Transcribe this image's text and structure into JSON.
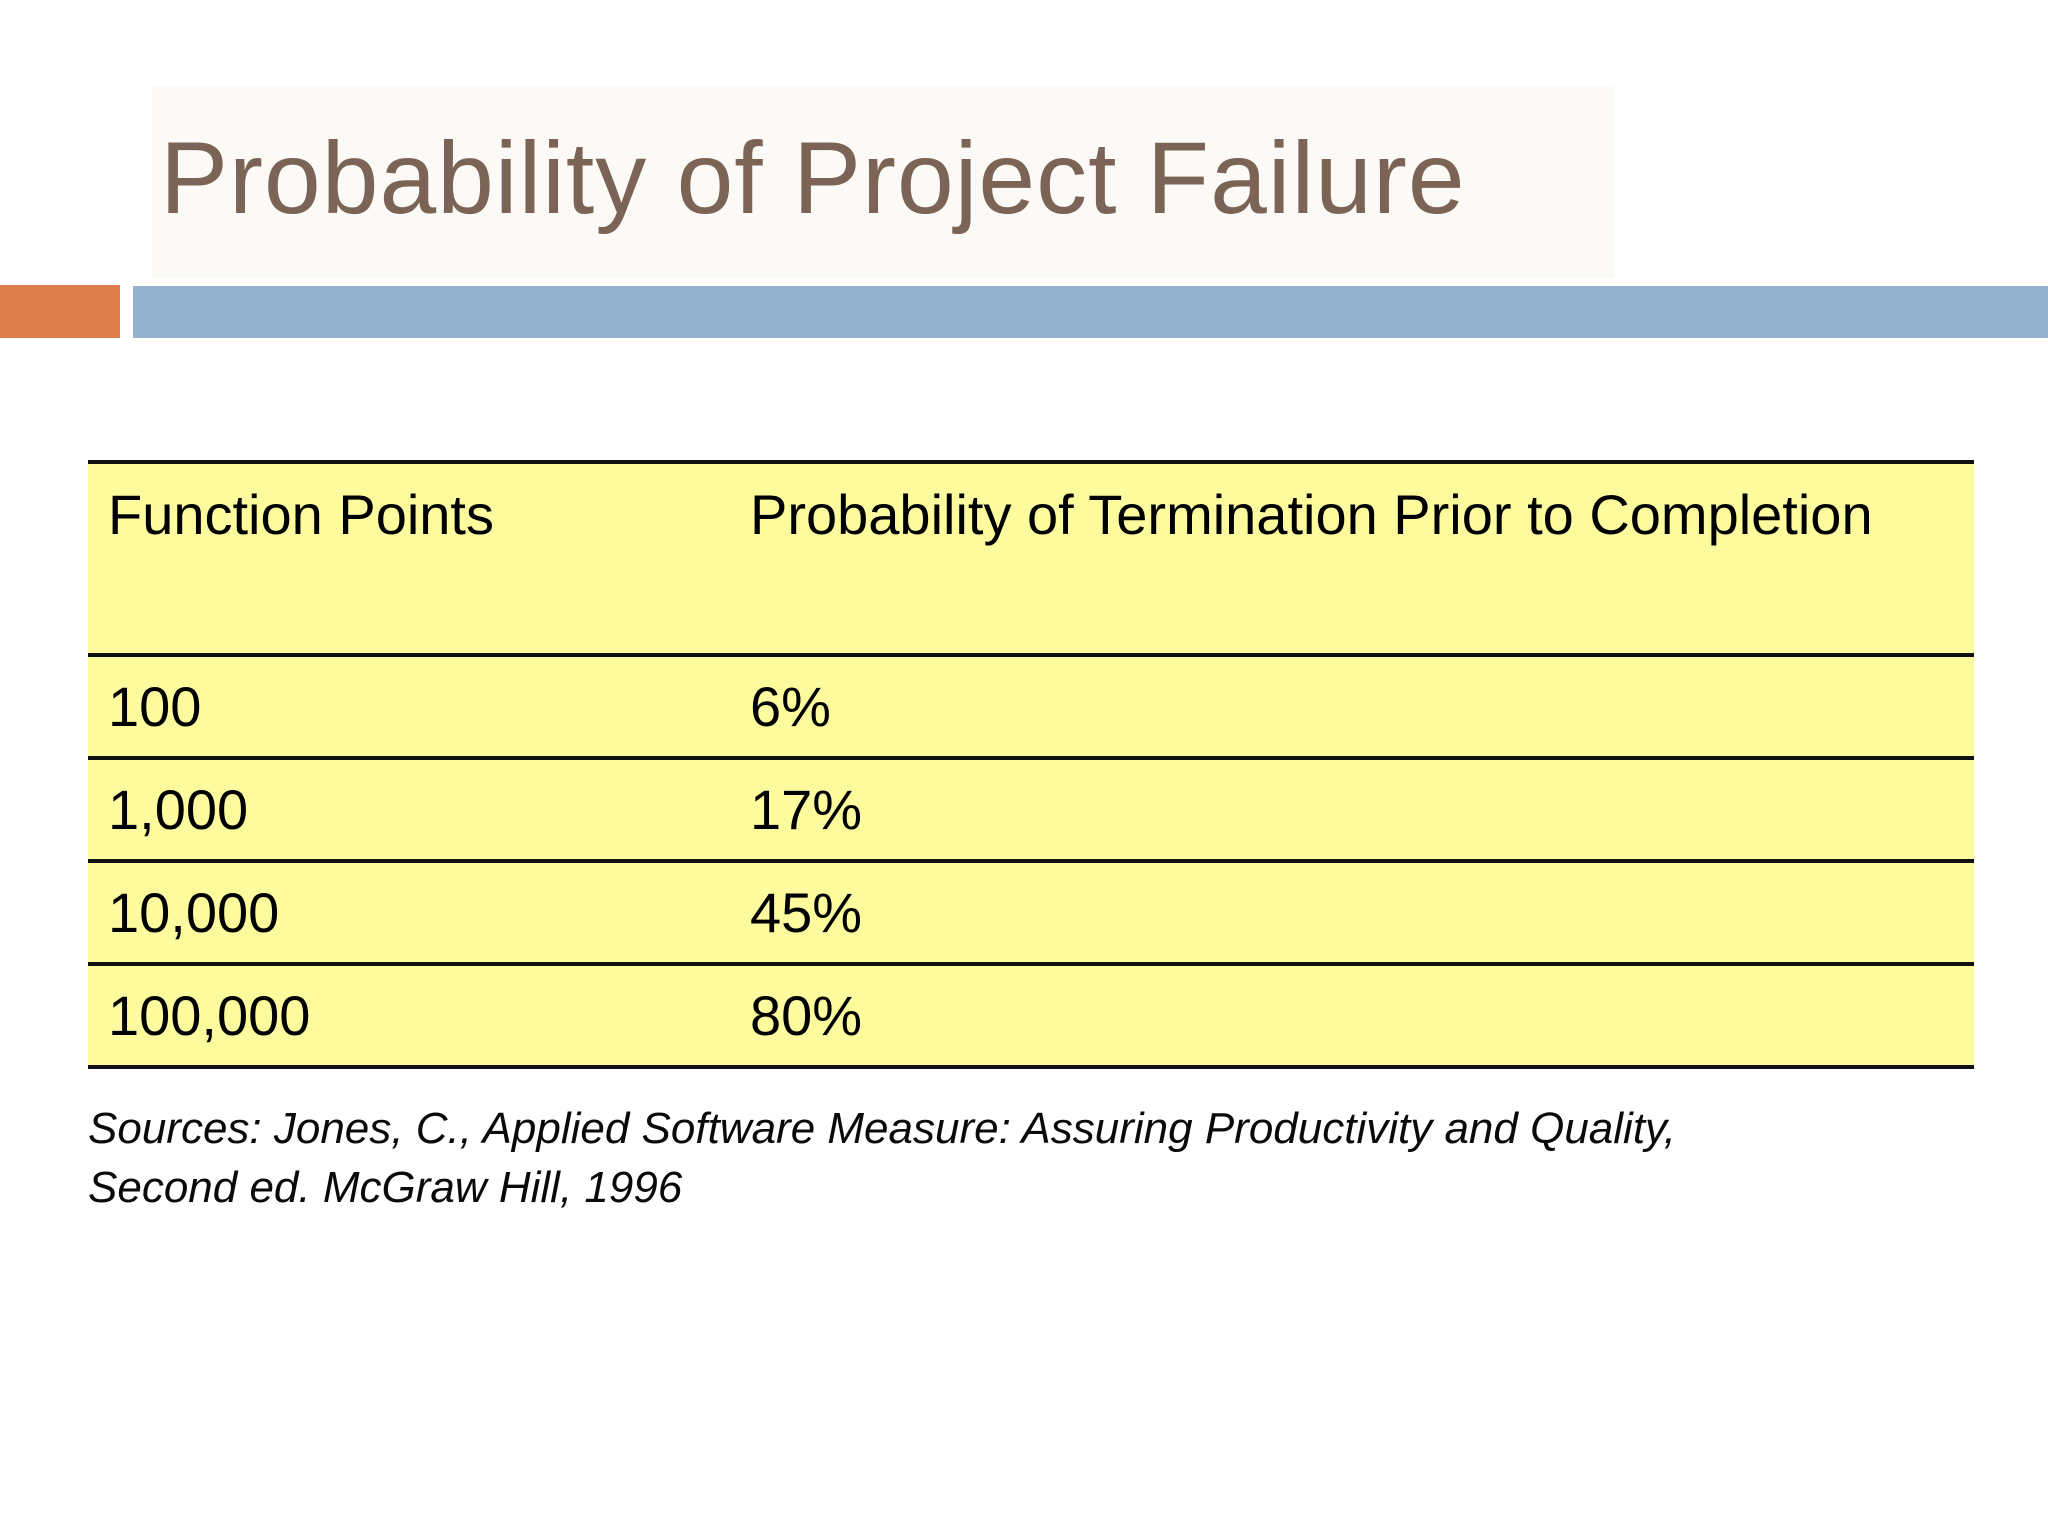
{
  "slide": {
    "title": "Probability of Project Failure",
    "colors": {
      "title_text": "#7b6455",
      "accent_orange": "#dc7f4a",
      "accent_blue": "#92b2cd",
      "table_fill_yellow": "#fdfb9d",
      "table_border": "#111111"
    },
    "table": {
      "headers": [
        "Function Points",
        "Probability of Termination Prior to Completion"
      ],
      "rows": [
        [
          "100",
          "6%"
        ],
        [
          "1,000",
          "17%"
        ],
        [
          "10,000",
          "45%"
        ],
        [
          "100,000",
          "80%"
        ]
      ]
    },
    "source": {
      "line1": "Sources: Jones, C., Applied Software Measure: Assuring Productivity and Quality,",
      "line2": "Second ed. McGraw Hill, 1996"
    }
  },
  "chart_data": {
    "type": "table",
    "title": "Probability of Project Failure",
    "columns": [
      "Function Points",
      "Probability of Termination Prior to Completion"
    ],
    "categories": [
      "100",
      "1,000",
      "10,000",
      "100,000"
    ],
    "values_percent": [
      6,
      17,
      45,
      80
    ]
  }
}
